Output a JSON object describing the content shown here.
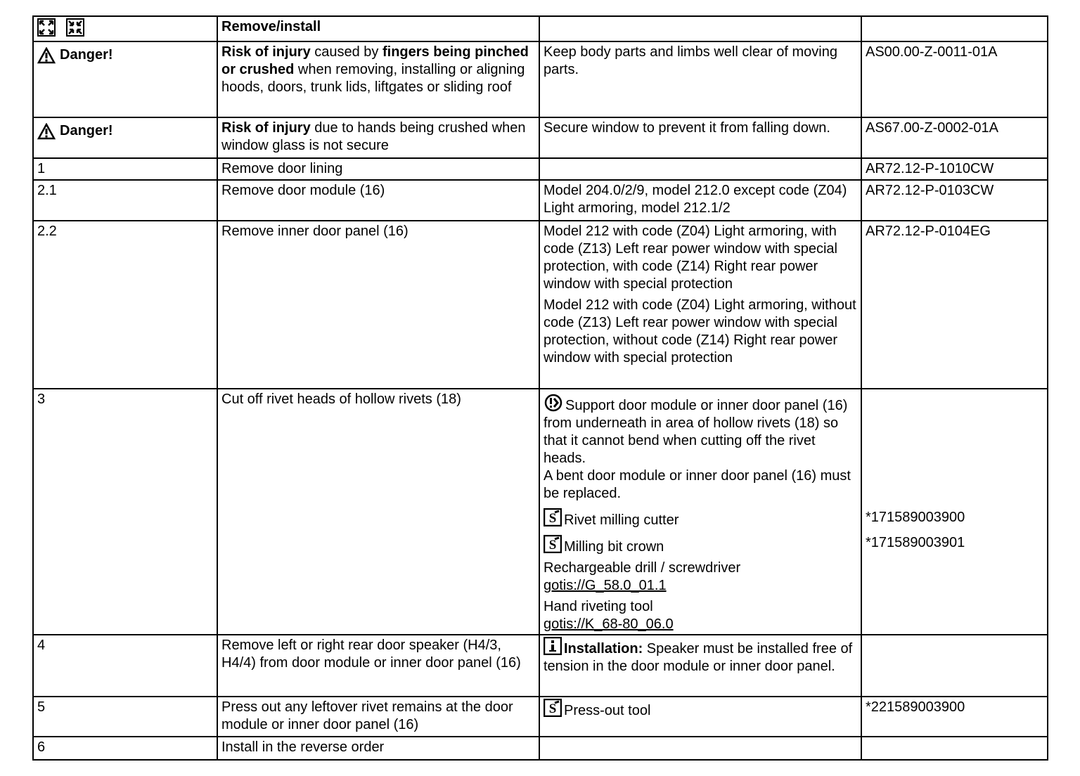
{
  "header": {
    "icons": [
      "expand-icon",
      "collapse-icon"
    ],
    "title": "Remove/install"
  },
  "dangers": [
    {
      "label": "Danger!",
      "risk_bold1": "Risk of injury",
      "risk_text1": " caused by ",
      "risk_bold2": "fingers being pinched or crushed",
      "risk_text2": " when removing, installing or aligning hoods, doors, trunk lids, liftgates or sliding roof",
      "action": "Keep body parts and limbs well clear of moving parts.",
      "ref": "AS00.00-Z-0011-01A"
    },
    {
      "label": "Danger!",
      "risk_bold1": "Risk of injury",
      "risk_text1": " due to hands being crushed when window glass is not secure",
      "action": "Secure window to prevent it from falling down.",
      "ref": "AS67.00-Z-0002-01A"
    }
  ],
  "steps": [
    {
      "num": "1",
      "text": "Remove door lining",
      "ref": "AR72.12-P-1010CW"
    },
    {
      "num": "2.1",
      "text": "Remove door module (16)",
      "note": "Model 204.0/2/9, model 212.0 except code (Z04) Light armoring, model 212.1/2",
      "ref": "AR72.12-P-0103CW"
    },
    {
      "num": "2.2",
      "text": "Remove inner door panel (16)",
      "notes": [
        "Model 212 with code (Z04) Light armoring, with code (Z13) Left rear power window with special protection, with code (Z14) Right rear power window with special protection",
        "Model 212 with code (Z04) Light armoring, without code (Z13) Left rear power window with special protection, without code (Z14) Right rear power window with special protection"
      ],
      "ref": "AR72.12-P-0104EG"
    },
    {
      "num": "3",
      "text": "Cut off rivet heads of hollow rivets (18)",
      "note_main": "Support door module or inner door panel (16) from underneath in area of hollow rivets (18) so that it cannot bend when cutting off the rivet heads.",
      "note_warn": "A bent door module or inner door panel (16) must be replaced.",
      "tool1": "Rivet milling cutter",
      "tool1_ref": "*171589003900",
      "tool2": "Milling bit crown",
      "tool2_ref": "*171589003901",
      "drill": "Rechargeable drill / screwdriver",
      "drill_link": "gotis://G_58.0_01.1",
      "riveter": "Hand riveting tool",
      "riveter_link": "gotis://K_68-80_06.0"
    },
    {
      "num": "4",
      "text": "Remove left or right rear door speaker (H4/3, H4/4) from door module or inner door panel (16)",
      "info_bold": "Installation:",
      "info_text": " Speaker must be installed free of tension in the door module or inner door panel."
    },
    {
      "num": "5",
      "text": "Press out any leftover rivet remains at the door module or inner door panel (16)",
      "tool": "Press-out tool",
      "ref": "*221589003900"
    },
    {
      "num": "6",
      "text": "Install in the reverse order"
    }
  ]
}
